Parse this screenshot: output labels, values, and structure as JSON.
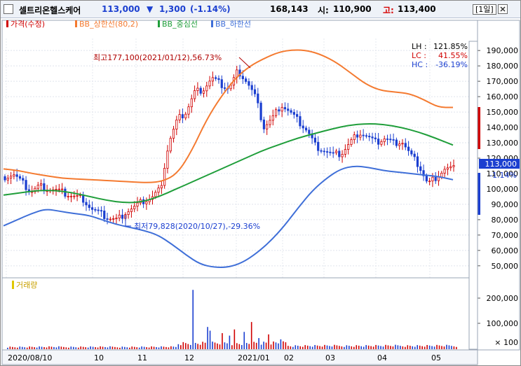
{
  "header": {
    "stock_name": "셀트리온헬스케어",
    "price": "113,000",
    "change_arrow": "▼",
    "change": "1,300",
    "change_pct": "(-1.14%)",
    "volume": "168,143",
    "open_label": "시:",
    "open": "110,900",
    "high_label": "고:",
    "high": "113,400",
    "period": "[1일]",
    "colors": {
      "down": "#1b3fd0",
      "up": "#d60000",
      "name": "#000000"
    }
  },
  "legend": {
    "items": [
      {
        "label": "가격(수정)",
        "color": "#d00000"
      },
      {
        "label": "BB_상한선(80,2)",
        "color": "#f47a30"
      },
      {
        "label": "BB_중심선",
        "color": "#1f9e3a"
      },
      {
        "label": "BB_하한선",
        "color": "#3f6fd8"
      }
    ]
  },
  "stats": {
    "lh_label": "LH :",
    "lh": "121.85%",
    "lc_label": "LC :",
    "lc": "41.55%",
    "hc_label": "HC :",
    "hc": "-36.19%"
  },
  "annotations": {
    "high": "최고177,100(2021/01/12),56.73%",
    "low": "최저79,828(2020/10/27),-29.36%"
  },
  "current_price_tag": {
    "price": "113,000",
    "change": "-1.14%"
  },
  "volume_panel": {
    "legend": "거래량",
    "ticks": [
      "200,000",
      "100,000",
      "× 100"
    ]
  },
  "chart_data": [
    {
      "type": "line",
      "title": "셀트리온헬스케어",
      "x_ticks": [
        "2020/08/10",
        "10",
        "11",
        "12",
        "2021/01",
        "02",
        "03",
        "04",
        "05"
      ],
      "y_ticks": [
        "190,000",
        "180,000",
        "170,000",
        "160,000",
        "150,000",
        "140,000",
        "130,000",
        "120,000",
        "110,000",
        "100,000",
        "90,000",
        "80,000",
        "70,000",
        "60,000",
        "50,000"
      ],
      "ylim": [
        44000,
        196000
      ],
      "n_days": 185,
      "grid": true,
      "series": [
        {
          "name": "가격(수정)",
          "color": "#d00000",
          "values": [
            108000,
            109500,
            104000,
            98000,
            102000,
            100000,
            99000,
            97000,
            95000,
            94000,
            87000,
            84000,
            81000,
            79828,
            85000,
            88000,
            92000,
            94000,
            100000,
            130000,
            145000,
            150000,
            163000,
            165000,
            172000,
            168000,
            165000,
            177100,
            170000,
            160000,
            140000,
            146000,
            155000,
            150000,
            144000,
            138000,
            128000,
            125000,
            122000,
            123000,
            130000,
            137000,
            134000,
            130000,
            133000,
            130000,
            131000,
            122000,
            115000,
            103000,
            108000,
            113000,
            113000
          ]
        },
        {
          "name": "BB_상한선(80,2)",
          "color": "#f47a30",
          "values": [
            113000,
            112000,
            110000,
            108500,
            107000,
            106500,
            106000,
            105500,
            105000,
            104500,
            104000,
            105000,
            110000,
            125000,
            145000,
            160000,
            172000,
            180000,
            185000,
            189000,
            190500,
            190000,
            187000,
            182000,
            175000,
            168000,
            164000,
            163000,
            162000,
            158000,
            153000,
            153000
          ]
        },
        {
          "name": "BB_중심선",
          "color": "#1f9e3a",
          "values": [
            96000,
            97500,
            99000,
            99000,
            97500,
            95000,
            92500,
            91000,
            91500,
            95000,
            100000,
            105000,
            110000,
            115000,
            120000,
            125000,
            129000,
            133000,
            136000,
            139000,
            141500,
            142500,
            142000,
            140000,
            137000,
            133000,
            128500
          ]
        },
        {
          "name": "BB_하한선",
          "color": "#3f6fd8",
          "values": [
            76000,
            80000,
            84000,
            87000,
            85500,
            84000,
            83000,
            80000,
            77000,
            75000,
            73000,
            70000,
            64000,
            57000,
            51000,
            49000,
            49000,
            52000,
            58000,
            66000,
            76000,
            88000,
            99000,
            107000,
            113000,
            115000,
            114000,
            112000,
            111000,
            110000,
            109000,
            108000,
            106000
          ]
        }
      ]
    },
    {
      "type": "bar",
      "title": "거래량",
      "y_ticks": [
        "200,000",
        "100,000"
      ],
      "ylim": [
        0,
        260000
      ],
      "n_days": 185,
      "spikes": [
        {
          "day": 76,
          "value": 240000
        },
        {
          "day": 82,
          "value": 90000
        },
        {
          "day": 83,
          "value": 75000
        },
        {
          "day": 88,
          "value": 65000
        },
        {
          "day": 91,
          "value": 55000
        },
        {
          "day": 93,
          "value": 80000
        },
        {
          "day": 97,
          "value": 70000
        },
        {
          "day": 100,
          "value": 110000
        },
        {
          "day": 103,
          "value": 45000
        },
        {
          "day": 107,
          "value": 60000
        },
        {
          "day": 112,
          "value": 40000
        }
      ]
    }
  ]
}
